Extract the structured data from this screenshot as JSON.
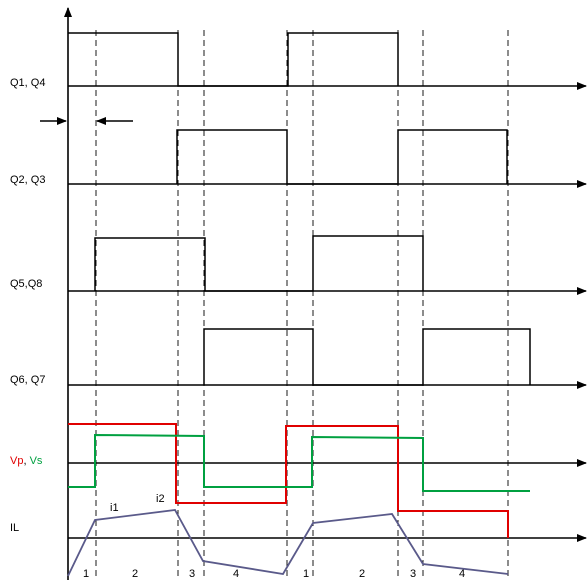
{
  "diagram": {
    "channels": [
      {
        "id": "q14",
        "label": "Q1, Q4"
      },
      {
        "id": "q23",
        "label": "Q2, Q3"
      },
      {
        "id": "q58",
        "label": "Q5,Q8"
      },
      {
        "id": "q67",
        "label": "Q6, Q7"
      },
      {
        "id": "vpvs",
        "label_parts": [
          {
            "text": "Vp",
            "color": "#e00000"
          },
          {
            "text": ", ",
            "color": "#000000"
          },
          {
            "text": "Vs",
            "color": "#00a040"
          }
        ]
      },
      {
        "id": "il",
        "label": "IL"
      }
    ],
    "current_markers": [
      {
        "text": "i1",
        "color": "#4a7ec8"
      },
      {
        "text": "i2",
        "color": "#4a7ec8"
      }
    ],
    "segments": [
      "1",
      "2",
      "3",
      "4",
      "1",
      "2",
      "3",
      "4"
    ],
    "colors": {
      "vp": "#e00000",
      "vs": "#00a040",
      "il": "#5a5a8a",
      "axis": "#000000"
    }
  }
}
